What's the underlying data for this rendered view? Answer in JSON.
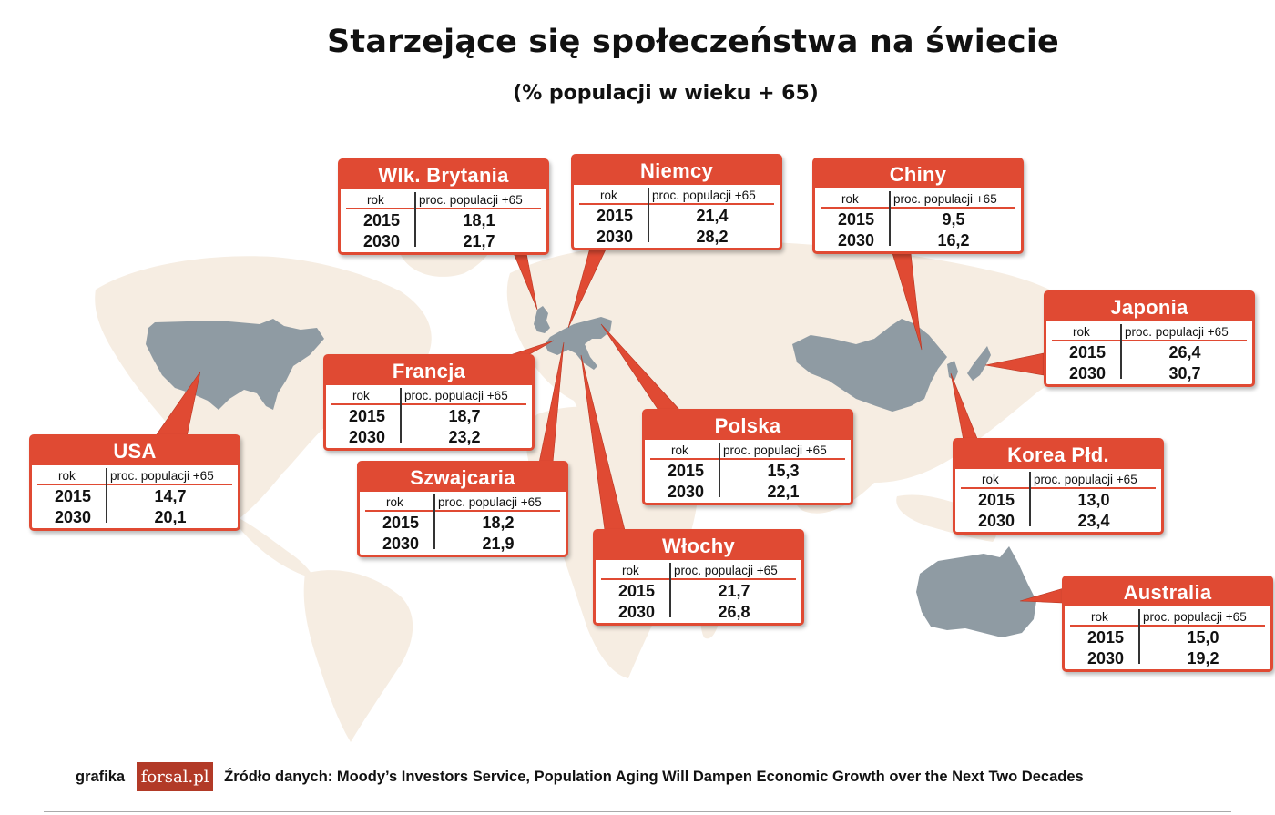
{
  "title": "Starzejące się społeczeństwa na świecie",
  "subtitle": "(% populacji w wieku + 65)",
  "table_headers": {
    "year": "rok",
    "value": "proc. populacji +65"
  },
  "countries": [
    {
      "name": "USA",
      "rows": [
        {
          "year": "2015",
          "value": "14,7"
        },
        {
          "year": "2030",
          "value": "20,1"
        }
      ]
    },
    {
      "name": "Wlk. Brytania",
      "rows": [
        {
          "year": "2015",
          "value": "18,1"
        },
        {
          "year": "2030",
          "value": "21,7"
        }
      ]
    },
    {
      "name": "Francja",
      "rows": [
        {
          "year": "2015",
          "value": "18,7"
        },
        {
          "year": "2030",
          "value": "23,2"
        }
      ]
    },
    {
      "name": "Szwajcaria",
      "rows": [
        {
          "year": "2015",
          "value": "18,2"
        },
        {
          "year": "2030",
          "value": "21,9"
        }
      ]
    },
    {
      "name": "Niemcy",
      "rows": [
        {
          "year": "2015",
          "value": "21,4"
        },
        {
          "year": "2030",
          "value": "28,2"
        }
      ]
    },
    {
      "name": "Polska",
      "rows": [
        {
          "year": "2015",
          "value": "15,3"
        },
        {
          "year": "2030",
          "value": "22,1"
        }
      ]
    },
    {
      "name": "Włochy",
      "rows": [
        {
          "year": "2015",
          "value": "21,7"
        },
        {
          "year": "2030",
          "value": "26,8"
        }
      ]
    },
    {
      "name": "Chiny",
      "rows": [
        {
          "year": "2015",
          "value": "9,5"
        },
        {
          "year": "2030",
          "value": "16,2"
        }
      ]
    },
    {
      "name": "Japonia",
      "rows": [
        {
          "year": "2015",
          "value": "26,4"
        },
        {
          "year": "2030",
          "value": "30,7"
        }
      ]
    },
    {
      "name": "Korea Płd.",
      "rows": [
        {
          "year": "2015",
          "value": "13,0"
        },
        {
          "year": "2030",
          "value": "23,4"
        }
      ]
    },
    {
      "name": "Australia",
      "rows": [
        {
          "year": "2015",
          "value": "15,0"
        },
        {
          "year": "2030",
          "value": "19,2"
        }
      ]
    }
  ],
  "footer": {
    "credit_label": "grafika",
    "logo_text": "forsal.pl",
    "source": "Źródło danych: Moody’s Investors Service, Population Aging Will Dampen Economic Growth over the Next Two Decades"
  },
  "colors": {
    "accent": "#e04a33",
    "highlight_land": "#8f9ba3",
    "background_land": "#f5ece1"
  }
}
